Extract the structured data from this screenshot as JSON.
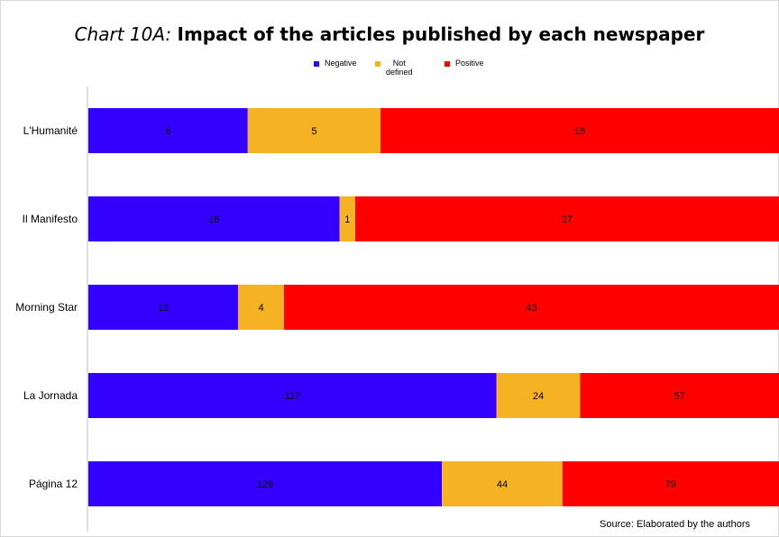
{
  "title_prefix": "Chart 10A:",
  "title_main": "Impact of the articles published by each newspaper",
  "source": "Source: Elaborated by the authors",
  "colors": {
    "Negative": "#3300ff",
    "Not defined": "#f5b324",
    "Positive": "#ff0000"
  },
  "legend": [
    {
      "name": "Negative",
      "label_lines": [
        "Negative"
      ]
    },
    {
      "name": "Not defined",
      "label_lines": [
        "Not",
        "defined"
      ]
    },
    {
      "name": "Positive",
      "label_lines": [
        "Positive"
      ]
    }
  ],
  "chart_data": {
    "type": "bar",
    "orientation": "horizontal",
    "stacked": "percent",
    "categories": [
      "L'Humanité",
      "Il Manifesto",
      "Morning Star",
      "La Jornada",
      "Página 12"
    ],
    "series": [
      {
        "name": "Negative",
        "values": [
          6,
          16,
          13,
          117,
          129
        ]
      },
      {
        "name": "Not defined",
        "values": [
          5,
          1,
          4,
          24,
          44
        ]
      },
      {
        "name": "Positive",
        "values": [
          15,
          27,
          43,
          57,
          79
        ]
      }
    ],
    "legend_position": "top",
    "grid": false
  }
}
